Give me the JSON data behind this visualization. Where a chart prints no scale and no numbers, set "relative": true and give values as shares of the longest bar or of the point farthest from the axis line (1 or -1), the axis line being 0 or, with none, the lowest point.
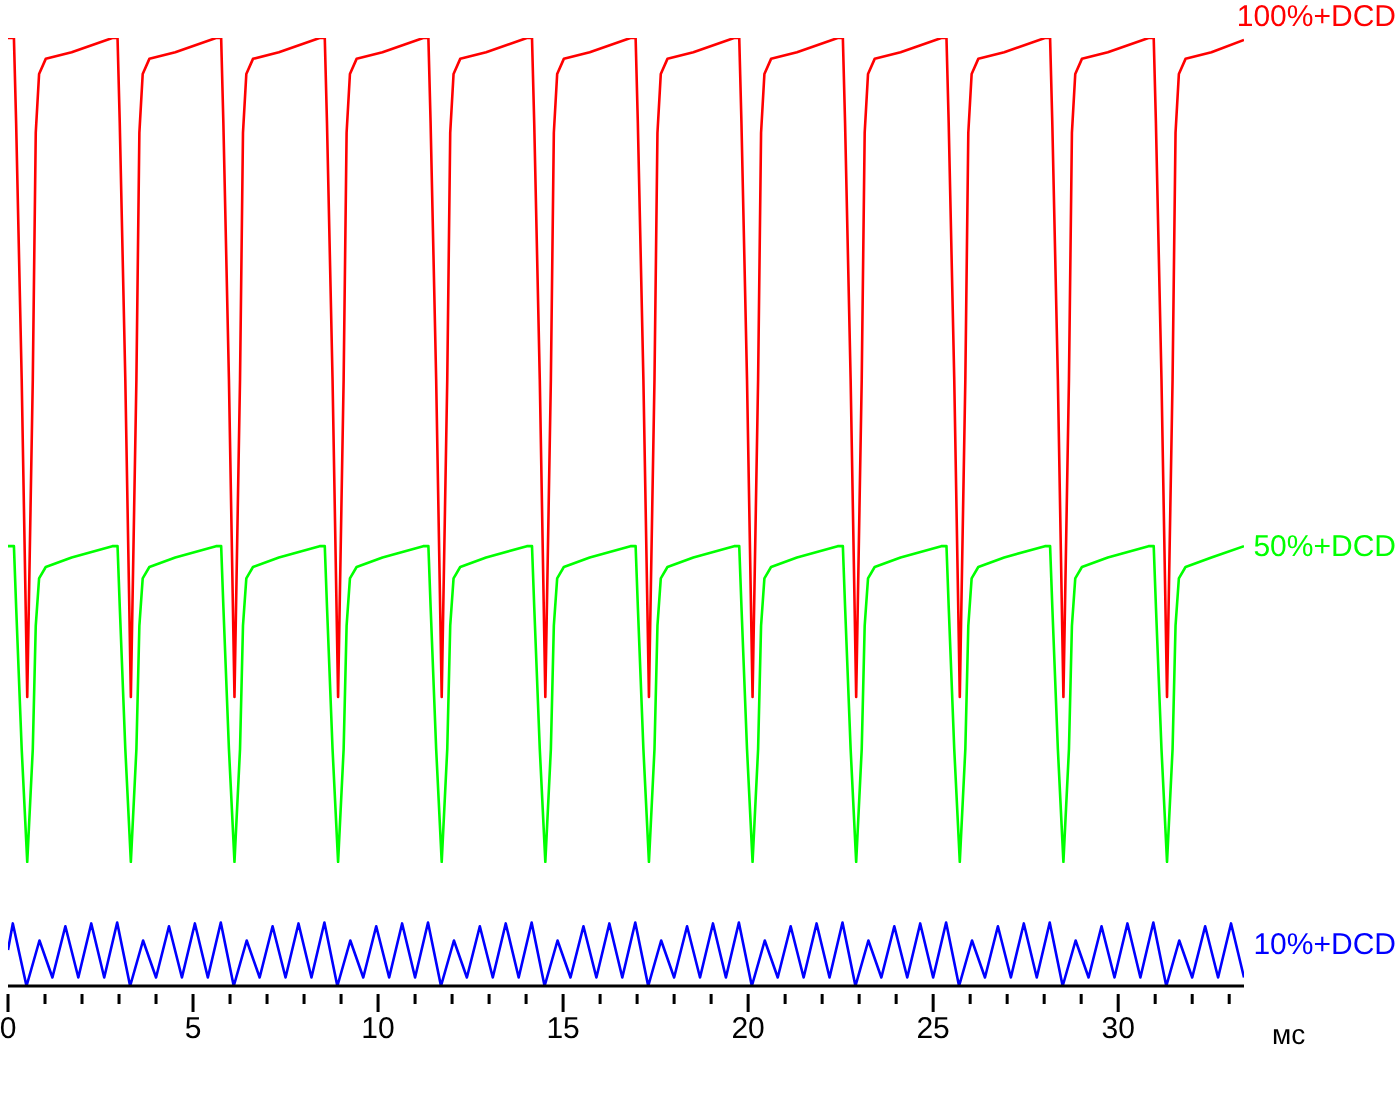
{
  "chart_data": {
    "type": "line",
    "relative": true,
    "xlabel": "мс",
    "marker": "none",
    "line_style": "solid",
    "xlim": [
      0,
      33.4
    ],
    "xticks": [
      0,
      {
        "value": 1,
        "label": null
      },
      {
        "value": 2,
        "label": null
      },
      {
        "value": 3,
        "label": null
      },
      {
        "value": 4,
        "label": null
      },
      5,
      {
        "value": 6,
        "label": null
      },
      {
        "value": 7,
        "label": null
      },
      {
        "value": 8,
        "label": null
      },
      {
        "value": 9,
        "label": null
      },
      10,
      {
        "value": 11,
        "label": null
      },
      {
        "value": 12,
        "label": null
      },
      {
        "value": 13,
        "label": null
      },
      {
        "value": 14,
        "label": null
      },
      15,
      {
        "value": 16,
        "label": null
      },
      {
        "value": 17,
        "label": null
      },
      {
        "value": 18,
        "label": null
      },
      {
        "value": 19,
        "label": null
      },
      20,
      {
        "value": 21,
        "label": null
      },
      {
        "value": 22,
        "label": null
      },
      {
        "value": 23,
        "label": null
      },
      {
        "value": 24,
        "label": null
      },
      25,
      {
        "value": 26,
        "label": null
      },
      {
        "value": 27,
        "label": null
      },
      {
        "value": 28,
        "label": null
      },
      {
        "value": 29,
        "label": null
      },
      30,
      {
        "value": 31,
        "label": null
      },
      {
        "value": 32,
        "label": null
      },
      {
        "value": 33,
        "label": null
      }
    ],
    "x": [
      0,
      0.16,
      0.22,
      0.37,
      0.52,
      0.67,
      0.75,
      0.84,
      1.02,
      1.72,
      2.82,
      2.96,
      3.02,
      3.17,
      3.32,
      3.47,
      3.55,
      3.64,
      3.82,
      4.52,
      5.62,
      5.76,
      5.82,
      5.97,
      6.12,
      6.27,
      6.35,
      6.44,
      6.62,
      7.32,
      8.42,
      8.56,
      8.62,
      8.77,
      8.92,
      9.07,
      9.15,
      9.24,
      9.42,
      10.12,
      11.22,
      11.36,
      11.42,
      11.57,
      11.72,
      11.87,
      11.95,
      12.04,
      12.22,
      12.92,
      14.02,
      14.16,
      14.22,
      14.37,
      14.52,
      14.67,
      14.75,
      14.84,
      15.02,
      15.72,
      16.82,
      16.96,
      17.02,
      17.17,
      17.32,
      17.47,
      17.55,
      17.64,
      17.82,
      18.52,
      19.62,
      19.76,
      19.82,
      19.97,
      20.12,
      20.27,
      20.35,
      20.44,
      20.62,
      21.32,
      22.42,
      22.56,
      22.62,
      22.77,
      22.92,
      23.07,
      23.15,
      23.24,
      23.42,
      24.12,
      25.22,
      25.36,
      25.42,
      25.57,
      25.72,
      25.87,
      25.95,
      26.04,
      26.22,
      26.92,
      28.02,
      28.16,
      28.22,
      28.37,
      28.52,
      28.67,
      28.75,
      28.84,
      29.02,
      29.72,
      30.82,
      30.96,
      31.02,
      31.17,
      31.32,
      31.47,
      31.55,
      31.64,
      31.82,
      32.52,
      33.4
    ],
    "series": [
      {
        "name": "100%+DCD",
        "color": "#ff0000",
        "values": [
          1,
          1,
          0.91,
          0.64,
          0.305,
          0.64,
          0.9,
          0.962,
          0.978,
          0.985,
          1,
          1,
          0.91,
          0.64,
          0.305,
          0.64,
          0.9,
          0.962,
          0.978,
          0.985,
          1,
          1,
          0.91,
          0.64,
          0.305,
          0.64,
          0.9,
          0.962,
          0.978,
          0.985,
          1,
          1,
          0.91,
          0.64,
          0.305,
          0.64,
          0.9,
          0.962,
          0.978,
          0.985,
          1,
          1,
          0.91,
          0.64,
          0.305,
          0.64,
          0.9,
          0.962,
          0.978,
          0.985,
          1,
          1,
          0.91,
          0.64,
          0.305,
          0.64,
          0.9,
          0.962,
          0.978,
          0.985,
          1,
          1,
          0.91,
          0.64,
          0.305,
          0.64,
          0.9,
          0.962,
          0.978,
          0.985,
          1,
          1,
          0.91,
          0.64,
          0.305,
          0.64,
          0.9,
          0.962,
          0.978,
          0.985,
          1,
          1,
          0.91,
          0.64,
          0.305,
          0.64,
          0.9,
          0.962,
          0.978,
          0.985,
          1,
          1,
          0.91,
          0.64,
          0.305,
          0.64,
          0.9,
          0.962,
          0.978,
          0.985,
          1,
          1,
          0.91,
          0.64,
          0.305,
          0.64,
          0.9,
          0.962,
          0.978,
          0.985,
          1,
          1,
          0.91,
          0.64,
          0.305,
          0.64,
          0.9,
          0.962,
          0.978,
          0.985,
          0.998
        ]
      },
      {
        "name": "50%+DCD",
        "color": "#00ff00",
        "values": [
          0.464,
          0.464,
          0.4,
          0.25,
          0.131,
          0.25,
          0.38,
          0.43,
          0.442,
          0.452,
          0.464,
          0.464,
          0.4,
          0.25,
          0.131,
          0.25,
          0.38,
          0.43,
          0.442,
          0.452,
          0.464,
          0.464,
          0.4,
          0.25,
          0.131,
          0.25,
          0.38,
          0.43,
          0.442,
          0.452,
          0.464,
          0.464,
          0.4,
          0.25,
          0.131,
          0.25,
          0.38,
          0.43,
          0.442,
          0.452,
          0.464,
          0.464,
          0.4,
          0.25,
          0.131,
          0.25,
          0.38,
          0.43,
          0.442,
          0.452,
          0.464,
          0.464,
          0.4,
          0.25,
          0.131,
          0.25,
          0.38,
          0.43,
          0.442,
          0.452,
          0.464,
          0.464,
          0.4,
          0.25,
          0.131,
          0.25,
          0.38,
          0.43,
          0.442,
          0.452,
          0.464,
          0.464,
          0.4,
          0.25,
          0.131,
          0.25,
          0.38,
          0.43,
          0.442,
          0.452,
          0.464,
          0.464,
          0.4,
          0.25,
          0.131,
          0.25,
          0.38,
          0.43,
          0.442,
          0.452,
          0.464,
          0.464,
          0.4,
          0.25,
          0.131,
          0.25,
          0.38,
          0.43,
          0.442,
          0.452,
          0.464,
          0.464,
          0.4,
          0.25,
          0.131,
          0.25,
          0.38,
          0.43,
          0.442,
          0.452,
          0.464,
          0.464,
          0.4,
          0.25,
          0.131,
          0.25,
          0.38,
          0.43,
          0.442,
          0.452,
          0.464
        ]
      },
      {
        "name": "10%+DCD",
        "color": "#0000ff",
        "x": [
          0,
          0.13,
          0.5,
          0.85,
          1.2,
          1.55,
          1.9,
          2.25,
          2.6,
          2.95,
          3.3,
          3.65,
          4.0,
          4.35,
          4.7,
          5.05,
          5.4,
          5.75,
          6.1,
          6.45,
          6.8,
          7.15,
          7.5,
          7.85,
          8.2,
          8.55,
          8.9,
          9.25,
          9.6,
          9.95,
          10.3,
          10.65,
          11.0,
          11.35,
          11.7,
          12.05,
          12.4,
          12.75,
          13.1,
          13.45,
          13.8,
          14.15,
          14.5,
          14.85,
          15.2,
          15.55,
          15.9,
          16.25,
          16.6,
          16.95,
          17.3,
          17.65,
          18.0,
          18.35,
          18.7,
          19.05,
          19.4,
          19.75,
          20.1,
          20.45,
          20.8,
          21.15,
          21.5,
          21.85,
          22.2,
          22.55,
          22.9,
          23.25,
          23.6,
          23.95,
          24.3,
          24.65,
          25.0,
          25.35,
          25.7,
          26.05,
          26.4,
          26.75,
          27.1,
          27.45,
          27.8,
          28.15,
          28.5,
          28.85,
          29.2,
          29.55,
          29.9,
          30.25,
          30.6,
          30.95,
          31.3,
          31.65,
          32.0,
          32.35,
          32.7,
          33.05,
          33.4
        ],
        "values": [
          0.038,
          0.066,
          0,
          0.048,
          0.009,
          0.063,
          0.009,
          0.066,
          0.009,
          0.067,
          0,
          0.048,
          0.009,
          0.063,
          0.009,
          0.066,
          0.009,
          0.067,
          0,
          0.048,
          0.009,
          0.063,
          0.009,
          0.066,
          0.009,
          0.067,
          0,
          0.048,
          0.009,
          0.063,
          0.009,
          0.066,
          0.009,
          0.067,
          0,
          0.048,
          0.009,
          0.063,
          0.009,
          0.066,
          0.009,
          0.067,
          0,
          0.048,
          0.009,
          0.063,
          0.009,
          0.066,
          0.009,
          0.067,
          0,
          0.048,
          0.009,
          0.063,
          0.009,
          0.066,
          0.009,
          0.067,
          0,
          0.048,
          0.009,
          0.063,
          0.009,
          0.066,
          0.009,
          0.067,
          0,
          0.048,
          0.009,
          0.063,
          0.009,
          0.066,
          0.009,
          0.067,
          0,
          0.048,
          0.009,
          0.063,
          0.009,
          0.066,
          0.009,
          0.067,
          0,
          0.048,
          0.009,
          0.063,
          0.009,
          0.066,
          0.009,
          0.067,
          0,
          0.048,
          0.009,
          0.063,
          0.009,
          0.066,
          0.009
        ]
      }
    ]
  }
}
